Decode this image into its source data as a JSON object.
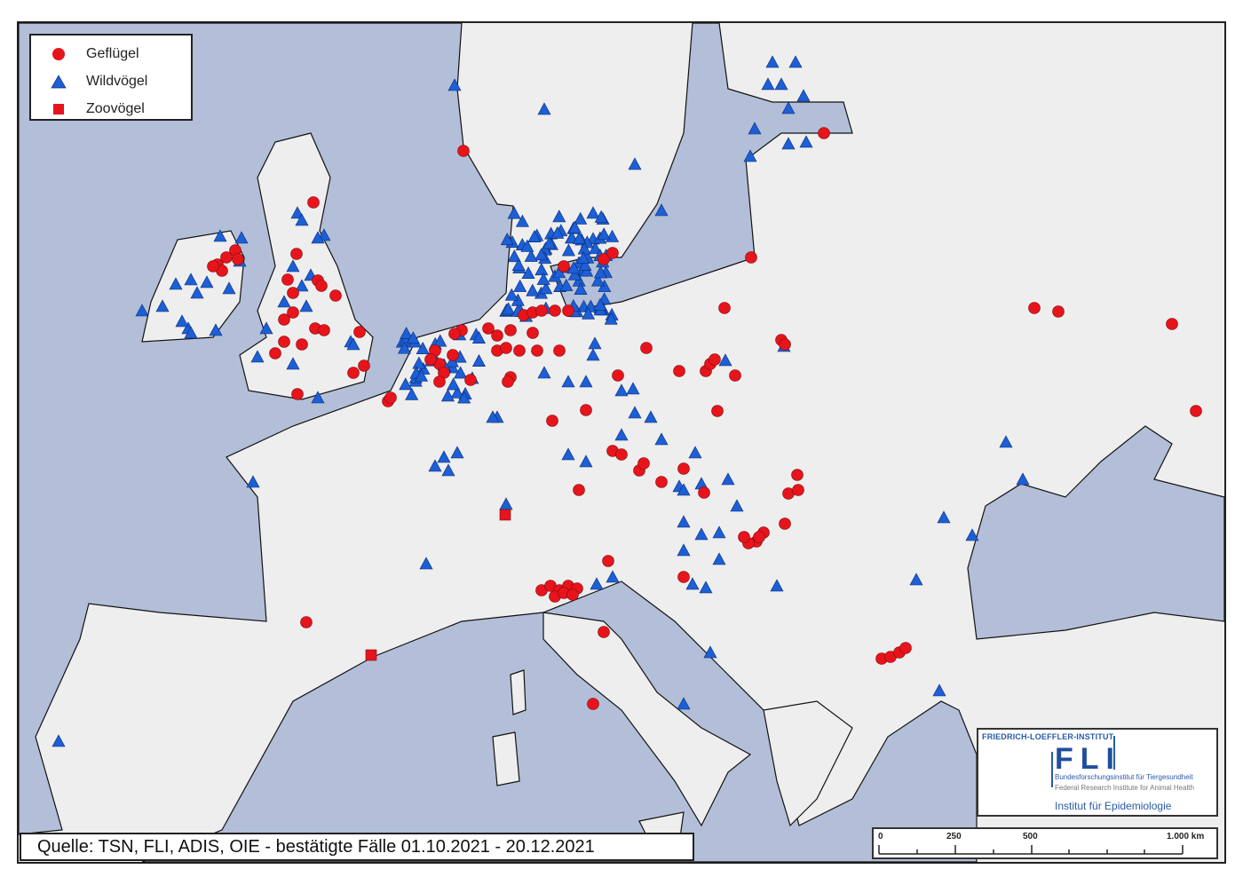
{
  "colors": {
    "sea": "#b3bfd8",
    "land": "#eeeeee",
    "border": "#111111",
    "gefluegel": "#e8141c",
    "wildvoegel": "#1c5fd6",
    "zoovoegel": "#e8141c"
  },
  "legend": {
    "items": [
      {
        "label": "Geflügel",
        "symbol": "red-circle"
      },
      {
        "label": "Wildvögel",
        "symbol": "blue-triangle"
      },
      {
        "label": "Zoovögel",
        "symbol": "red-square"
      }
    ]
  },
  "source": "Quelle: TSN, FLI, ADIS, OIE - bestätigte Fälle 01.10.2021 - 20.12.2021",
  "logo": {
    "institute": "FRIEDRICH-LOEFFLER-INSTITUT",
    "abbr": "FLI",
    "german": "Bundesforschungsinstitut für Tiergesundheit",
    "english": "Federal Research Institute for Animal Health",
    "department": "Institut für Epidemiologie"
  },
  "scale_bar": {
    "labels": [
      "0",
      "250",
      "500",
      "1.000 km"
    ]
  }
}
